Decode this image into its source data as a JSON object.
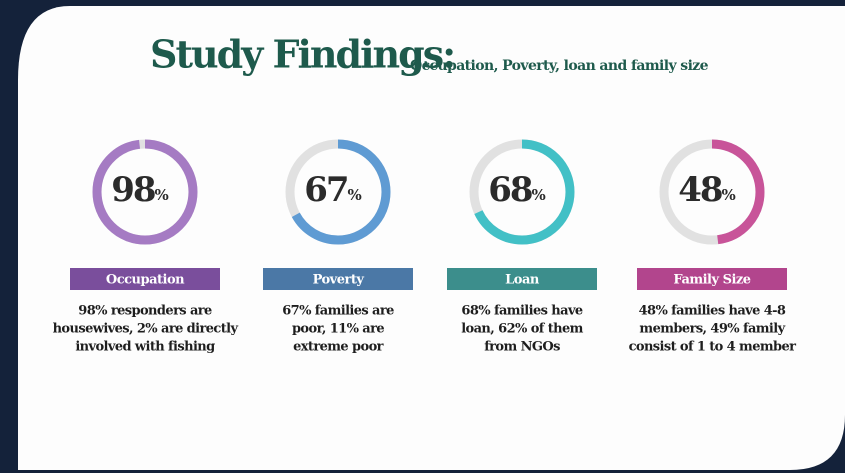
{
  "title": "Study Findings:",
  "subtitle": "Occupation, Poverty, loan and family size",
  "ylim": [
    0,
    100
  ],
  "unit": "%",
  "items": [
    {
      "value": 98,
      "color": "#a57bc3",
      "label": "Occupation",
      "label_color": "#7a4e9c",
      "description": [
        "98% responders are",
        "housewives, 2% are directly",
        "involved with fishing"
      ]
    },
    {
      "value": 67,
      "color": "#5f9bd3",
      "label": "Poverty",
      "label_color": "#4b78a6",
      "description": [
        "67% families are",
        "poor, 11% are",
        "extreme poor"
      ]
    },
    {
      "value": 68,
      "color": "#42c0c6",
      "label": "Loan",
      "label_color": "#3c8e8c",
      "description": [
        "68% families have",
        "loan, 62% of them",
        "from NGOs"
      ]
    },
    {
      "value": 48,
      "color": "#c85499",
      "label": "Family Size",
      "label_color": "#b2458d",
      "description": [
        "48% families have 4-8",
        "members, 49% family",
        "consist of 1 to 4 member"
      ]
    }
  ]
}
